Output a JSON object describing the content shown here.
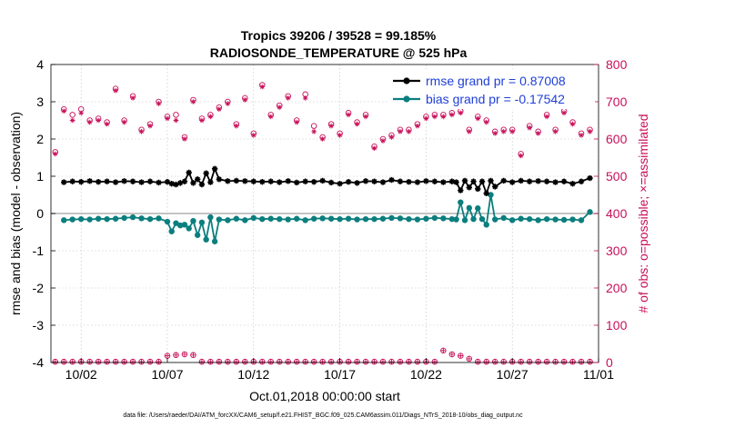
{
  "figure": {
    "title_line1": "Tropics 39206 / 39528 = 99.185%",
    "title_line2": "RADIOSONDE_TEMPERATURE @ 525 hPa",
    "xlabel": "Oct.01,2018 00:00:00 start",
    "ylabel_left": "rmse and bias (model - observation)",
    "ylabel_right": "# of obs: o=possible; ×=assimilated",
    "footer": "data file: /Users/raeder/DAI/ATM_forcXX/CAM6_setup/f.e21.FHIST_BGC.f09_025.CAM6assim.011/Diags_NTrS_2018-10/obs_diag_output.nc"
  },
  "chart_data": {
    "type": "line",
    "xlim": [
      -0.75,
      31.0
    ],
    "ylim_left": [
      -4,
      4
    ],
    "ylim_right": [
      0,
      800
    ],
    "x_ticks": [
      1,
      6,
      11,
      16,
      21,
      26,
      31
    ],
    "x_tick_labels": [
      "10/02",
      "10/07",
      "10/12",
      "10/17",
      "10/22",
      "10/27",
      "11/01"
    ],
    "y_ticks_left": [
      -4,
      -3,
      -2,
      -1,
      0,
      1,
      2,
      3,
      4
    ],
    "y_tick_labels_left": [
      "-4",
      "-3",
      "-2",
      "-1",
      "0",
      "1",
      "2",
      "3",
      "4"
    ],
    "y_ticks_right": [
      0,
      100,
      200,
      300,
      400,
      500,
      600,
      700,
      800
    ],
    "y_tick_labels_right": [
      "0",
      "100",
      "200",
      "300",
      "400",
      "500",
      "600",
      "700",
      "800"
    ],
    "grid": true,
    "legend": [
      {
        "name": "rmse grand pr = 0.87008",
        "color": "#000000"
      },
      {
        "name": "bias grand pr = -0.17542",
        "color": "#0b7e7e"
      }
    ],
    "x": [
      0,
      0.5,
      1,
      1.5,
      2,
      2.5,
      3,
      3.5,
      4,
      4.5,
      5,
      5.5,
      6,
      6.25,
      6.5,
      6.75,
      7,
      7.25,
      7.5,
      7.75,
      8,
      8.25,
      8.5,
      8.75,
      9,
      9.5,
      10,
      10.5,
      11,
      11.5,
      12,
      12.5,
      13,
      13.5,
      14,
      14.5,
      15,
      15.5,
      16,
      16.5,
      17,
      17.5,
      18,
      18.5,
      19,
      19.5,
      20,
      20.5,
      21,
      21.5,
      22,
      22.5,
      22.75,
      23,
      23.25,
      23.5,
      23.75,
      24,
      24.25,
      24.5,
      24.75,
      25,
      25.5,
      26,
      26.5,
      27,
      27.5,
      28,
      28.5,
      29,
      29.5,
      30,
      30.5
    ],
    "series": [
      {
        "name": "rmse",
        "color": "#000000",
        "values": [
          0.84,
          0.86,
          0.85,
          0.87,
          0.85,
          0.86,
          0.84,
          0.87,
          0.86,
          0.84,
          0.86,
          0.83,
          0.85,
          0.8,
          0.78,
          0.82,
          0.86,
          1.1,
          0.82,
          0.92,
          0.78,
          1.08,
          0.84,
          1.2,
          0.92,
          0.87,
          0.88,
          0.87,
          0.86,
          0.85,
          0.86,
          0.84,
          0.87,
          0.83,
          0.86,
          0.85,
          0.88,
          0.83,
          0.8,
          0.85,
          0.82,
          0.87,
          0.86,
          0.84,
          0.9,
          0.86,
          0.85,
          0.84,
          0.87,
          0.86,
          0.84,
          0.86,
          0.84,
          0.62,
          0.88,
          0.7,
          0.86,
          0.66,
          0.86,
          0.54,
          0.88,
          0.72,
          0.88,
          0.84,
          0.88,
          0.86,
          0.87,
          0.86,
          0.84,
          0.86,
          0.8,
          0.86,
          0.95
        ]
      },
      {
        "name": "bias",
        "color": "#0b7e7e",
        "values": [
          -0.18,
          -0.16,
          -0.15,
          -0.16,
          -0.14,
          -0.15,
          -0.14,
          -0.12,
          -0.1,
          -0.13,
          -0.15,
          -0.13,
          -0.22,
          -0.48,
          -0.26,
          -0.32,
          -0.3,
          -0.4,
          -0.2,
          -0.58,
          -0.24,
          -0.7,
          -0.1,
          -0.75,
          -0.16,
          -0.18,
          -0.14,
          -0.18,
          -0.12,
          -0.15,
          -0.14,
          -0.15,
          -0.16,
          -0.14,
          -0.18,
          -0.14,
          -0.13,
          -0.14,
          -0.15,
          -0.14,
          -0.16,
          -0.15,
          -0.15,
          -0.14,
          -0.12,
          -0.13,
          -0.15,
          -0.16,
          -0.14,
          -0.12,
          -0.13,
          -0.15,
          -0.16,
          0.3,
          -0.18,
          0.15,
          -0.15,
          0.14,
          -0.15,
          -0.3,
          0.5,
          -0.16,
          -0.12,
          -0.18,
          -0.14,
          -0.15,
          -0.18,
          -0.15,
          -0.16,
          -0.17,
          -0.16,
          -0.18,
          0.04
        ]
      }
    ],
    "obs_possible": {
      "color": "#c8105a",
      "x": [
        -0.5,
        0,
        0.5,
        1,
        1.5,
        2,
        2.5,
        3,
        3.5,
        4,
        4.5,
        5,
        5.5,
        6,
        6.5,
        7,
        7.5,
        8,
        8.5,
        9,
        9.5,
        10,
        10.5,
        11,
        11.5,
        12,
        12.5,
        13,
        13.5,
        14,
        14.5,
        15,
        15.5,
        16,
        16.5,
        17,
        17.5,
        18,
        18.5,
        19,
        19.5,
        20,
        20.5,
        21,
        21.5,
        22,
        22.5,
        23,
        23.5,
        24,
        24.5,
        25,
        25.5,
        26,
        26.5,
        27,
        27.5,
        28,
        28.5,
        29,
        29.5,
        30,
        30.5
      ],
      "values": [
        565,
        680,
        665,
        680,
        650,
        655,
        645,
        735,
        650,
        715,
        625,
        640,
        700,
        660,
        665,
        605,
        705,
        655,
        665,
        685,
        700,
        640,
        710,
        615,
        745,
        665,
        690,
        715,
        650,
        720,
        635,
        605,
        640,
        615,
        670,
        645,
        665,
        580,
        600,
        610,
        625,
        625,
        640,
        660,
        665,
        665,
        670,
        675,
        625,
        660,
        650,
        620,
        625,
        625,
        560,
        635,
        620,
        665,
        625,
        675,
        645,
        615,
        625
      ]
    },
    "obs_assimilated": {
      "color": "#c8105a",
      "values": [
        560,
        675,
        650,
        670,
        645,
        650,
        640,
        730,
        645,
        710,
        620,
        635,
        695,
        655,
        650,
        600,
        700,
        650,
        660,
        680,
        695,
        635,
        705,
        610,
        740,
        660,
        685,
        710,
        645,
        710,
        620,
        600,
        635,
        610,
        665,
        640,
        660,
        575,
        595,
        605,
        620,
        620,
        635,
        655,
        660,
        660,
        665,
        670,
        620,
        655,
        645,
        615,
        620,
        620,
        555,
        630,
        615,
        660,
        620,
        670,
        640,
        610,
        620
      ]
    },
    "obs_bottom": {
      "x": [
        6,
        6.5,
        7,
        7.5,
        22,
        22.5,
        23,
        23.5
      ],
      "values": [
        18,
        20,
        22,
        20,
        32,
        22,
        18,
        10
      ]
    }
  }
}
